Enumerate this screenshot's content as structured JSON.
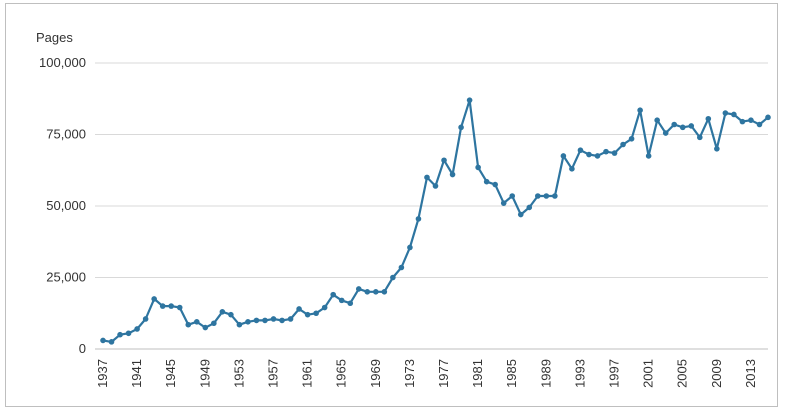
{
  "chart_data": {
    "type": "line",
    "title": "",
    "ylabel": "Pages",
    "xlabel": "",
    "ylim": [
      0,
      100000
    ],
    "yticks": [
      0,
      25000,
      50000,
      75000,
      100000
    ],
    "ytick_labels": [
      "0",
      "25,000",
      "50,000",
      "75,000",
      "100,000"
    ],
    "xtick_labels": [
      "1937",
      "1941",
      "1945",
      "1949",
      "1953",
      "1957",
      "1961",
      "1965",
      "1969",
      "1973",
      "1977",
      "1981",
      "1985",
      "1989",
      "1993",
      "1997",
      "2001",
      "2005",
      "2009",
      "2013"
    ],
    "grid": true,
    "colors": {
      "line": "#2e75a0",
      "grid": "#d9d9d9"
    },
    "series": [
      {
        "name": "",
        "x": [
          1937,
          1938,
          1939,
          1940,
          1941,
          1942,
          1943,
          1944,
          1945,
          1946,
          1947,
          1948,
          1949,
          1950,
          1951,
          1952,
          1953,
          1954,
          1955,
          1956,
          1957,
          1958,
          1959,
          1960,
          1961,
          1962,
          1963,
          1964,
          1965,
          1966,
          1967,
          1968,
          1969,
          1970,
          1971,
          1972,
          1973,
          1974,
          1975,
          1976,
          1977,
          1978,
          1979,
          1980,
          1981,
          1982,
          1983,
          1984,
          1985,
          1986,
          1987,
          1988,
          1989,
          1990,
          1991,
          1992,
          1993,
          1994,
          1995,
          1996,
          1997,
          1998,
          1999,
          2000,
          2001,
          2002,
          2003,
          2004,
          2005,
          2006,
          2007,
          2008,
          2009,
          2010,
          2011,
          2012,
          2013,
          2014,
          2015
        ],
        "values": [
          3000,
          2500,
          5000,
          5500,
          7000,
          10500,
          17500,
          15000,
          15000,
          14500,
          8500,
          9500,
          7500,
          9000,
          13000,
          12000,
          8500,
          9500,
          10000,
          10000,
          10500,
          10000,
          10500,
          14000,
          12000,
          12500,
          14500,
          19000,
          17000,
          16000,
          21000,
          20000,
          20000,
          20000,
          25000,
          28500,
          35500,
          45500,
          60000,
          57000,
          66000,
          61000,
          77500,
          87000,
          63500,
          58500,
          57500,
          51000,
          53500,
          47000,
          49500,
          53500,
          53500,
          53500,
          67500,
          63000,
          69500,
          68000,
          67500,
          69000,
          68500,
          71500,
          73500,
          83500,
          67500,
          80000,
          75500,
          78500,
          77500,
          78000,
          74000,
          80500,
          70000,
          82500,
          82000,
          79500,
          80000,
          78500,
          81000
        ]
      }
    ]
  }
}
